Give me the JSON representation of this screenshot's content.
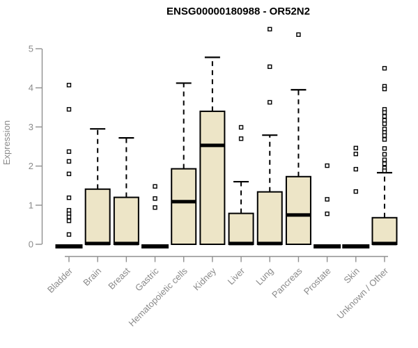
{
  "chart_data": {
    "type": "boxplot",
    "title": "ENSG00000180988 - OR52N2",
    "ylabel": "Expression",
    "xlabel": "",
    "ylim": [
      0,
      5
    ],
    "yticks": [
      0,
      1,
      2,
      3,
      4,
      5
    ],
    "grid": false,
    "legend": "none",
    "categories": [
      "Bladder",
      "Brain",
      "Breast",
      "Gastric",
      "Hematopoietic cells",
      "Kidney",
      "Liver",
      "Lung",
      "Pancreas",
      "Prostate",
      "Skin",
      "Unknown / Other"
    ],
    "boxes": [
      {
        "category": "Bladder",
        "q1": 0,
        "median": 0,
        "q3": 0,
        "whisker_low": 0,
        "whisker_high": 0,
        "outliers": [
          4.07,
          3.45,
          2.37,
          2.12,
          1.8,
          1.19,
          0.87,
          0.78,
          0.7,
          0.6,
          0.25
        ]
      },
      {
        "category": "Brain",
        "q1": 0,
        "median": 0.02,
        "q3": 1.41,
        "whisker_low": 0,
        "whisker_high": 2.95,
        "outliers": []
      },
      {
        "category": "Breast",
        "q1": 0,
        "median": 0.02,
        "q3": 1.2,
        "whisker_low": 0,
        "whisker_high": 2.72,
        "outliers": []
      },
      {
        "category": "Gastric",
        "q1": 0,
        "median": 0,
        "q3": 0,
        "whisker_low": 0,
        "whisker_high": 0,
        "outliers": [
          1.48,
          1.17,
          0.94
        ]
      },
      {
        "category": "Hematopoietic cells",
        "q1": 0,
        "median": 1.09,
        "q3": 1.93,
        "whisker_low": 0,
        "whisker_high": 4.12,
        "outliers": []
      },
      {
        "category": "Kidney",
        "q1": 0,
        "median": 2.53,
        "q3": 3.4,
        "whisker_low": 0,
        "whisker_high": 4.78,
        "outliers": []
      },
      {
        "category": "Liver",
        "q1": 0,
        "median": 0.02,
        "q3": 0.79,
        "whisker_low": 0,
        "whisker_high": 1.6,
        "outliers": [
          2.99,
          2.7
        ]
      },
      {
        "category": "Lung",
        "q1": 0,
        "median": 0.02,
        "q3": 1.34,
        "whisker_low": 0,
        "whisker_high": 2.79,
        "outliers": [
          5.5,
          4.54,
          3.63
        ]
      },
      {
        "category": "Pancreas",
        "q1": 0,
        "median": 0.75,
        "q3": 1.73,
        "whisker_low": 0,
        "whisker_high": 3.95,
        "outliers": [
          5.36
        ]
      },
      {
        "category": "Prostate",
        "q1": 0,
        "median": 0,
        "q3": 0,
        "whisker_low": 0,
        "whisker_high": 0,
        "outliers": [
          2.01,
          1.15,
          0.78
        ]
      },
      {
        "category": "Skin",
        "q1": 0,
        "median": 0,
        "q3": 0,
        "whisker_low": 0,
        "whisker_high": 0,
        "outliers": [
          2.46,
          2.31,
          1.92,
          1.35
        ]
      },
      {
        "category": "Unknown / Other",
        "q1": 0,
        "median": 0.02,
        "q3": 0.68,
        "whisker_low": 0,
        "whisker_high": 1.83,
        "outliers": [
          4.5,
          4.04,
          3.97,
          3.45,
          3.37,
          3.27,
          3.17,
          3.08,
          2.95,
          2.86,
          2.78,
          2.68,
          2.45,
          2.3,
          2.16,
          2.06,
          1.95,
          1.88
        ]
      }
    ],
    "colors": {
      "box_fill": "#EDE5C7",
      "box_border": "#000000",
      "median": "#000000",
      "whisker": "#000000",
      "outlier_border": "#000000",
      "axis": "#8f8f8f",
      "tick_text": "#8a8a8a",
      "title_text": "#000000"
    }
  }
}
